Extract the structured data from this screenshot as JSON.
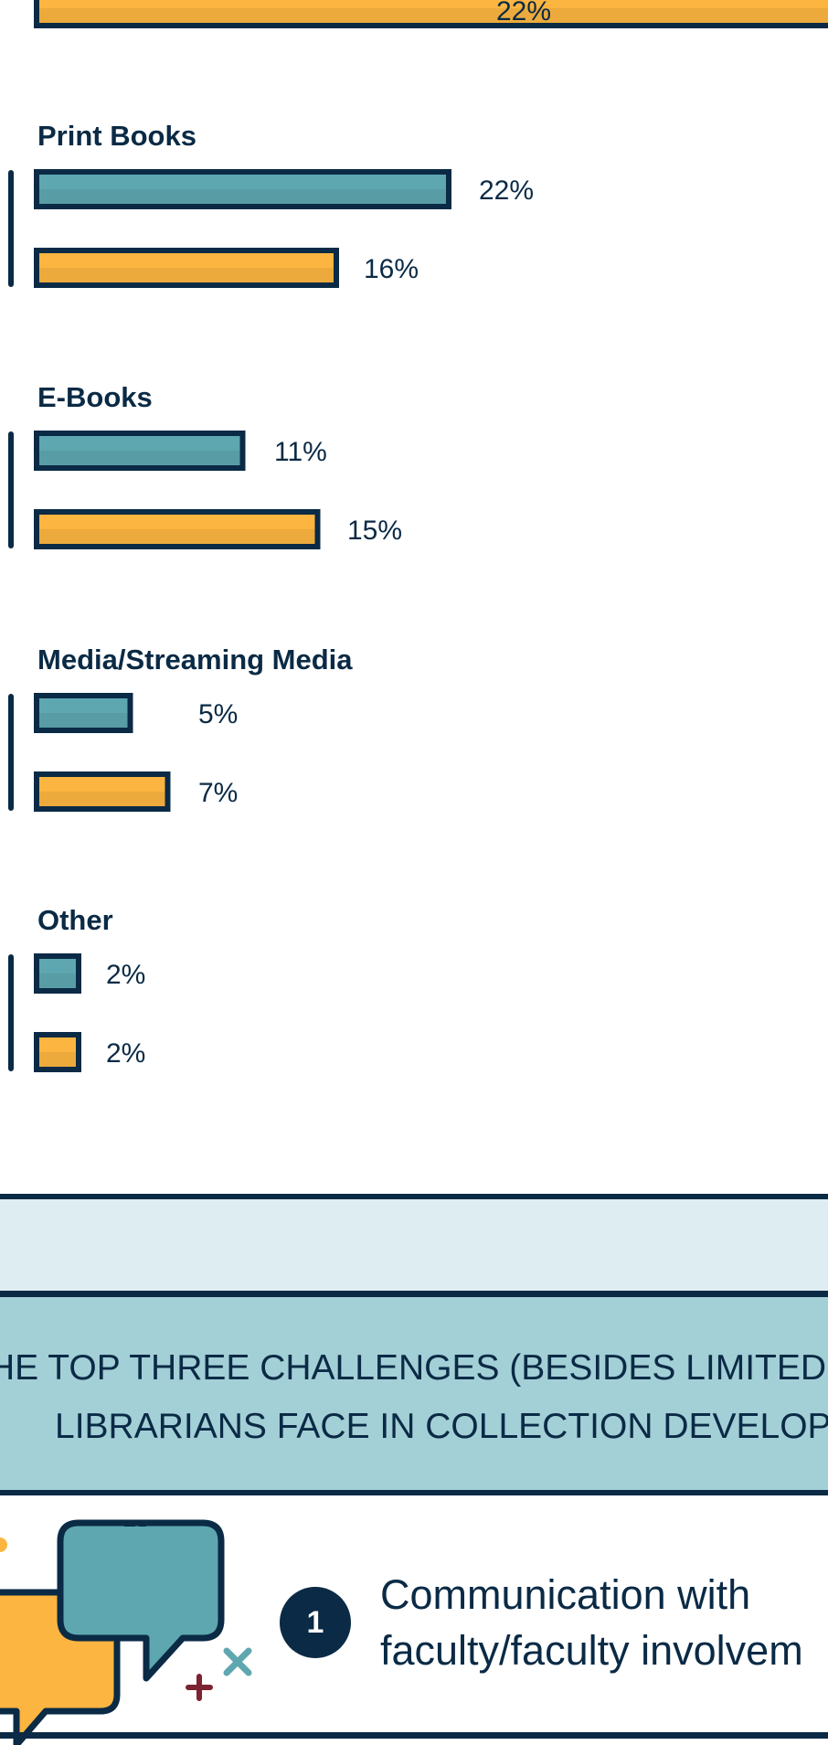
{
  "chart_data": {
    "type": "bar",
    "orientation": "horizontal",
    "categories": [
      "Print Books",
      "E-Books",
      "Media/Streaming Media",
      "Other"
    ],
    "series": [
      {
        "values": [
          22,
          11,
          5,
          2
        ],
        "color": "#5ea7b0"
      },
      {
        "values": [
          16,
          15,
          7,
          2
        ],
        "color": "#fbb540"
      }
    ],
    "value_suffix": "%",
    "partial_top_bar": {
      "value": 22,
      "label": "22%",
      "color": "#fbb540"
    }
  },
  "banner": {
    "line1": "HE TOP THREE CHALLENGES (BESIDES LIMITED FU",
    "line2": "LIBRARIANS FACE IN COLLECTION DEVELOPM"
  },
  "challenge": {
    "number": "1",
    "line1": "Communication with",
    "line2": "faculty/faculty involvem"
  },
  "colors": {
    "navy": "#0a2a45",
    "teal": "#5ea7b0",
    "orange": "#fbb540",
    "banner_bg": "#a3cfd6",
    "light_band": "#deedf1"
  }
}
